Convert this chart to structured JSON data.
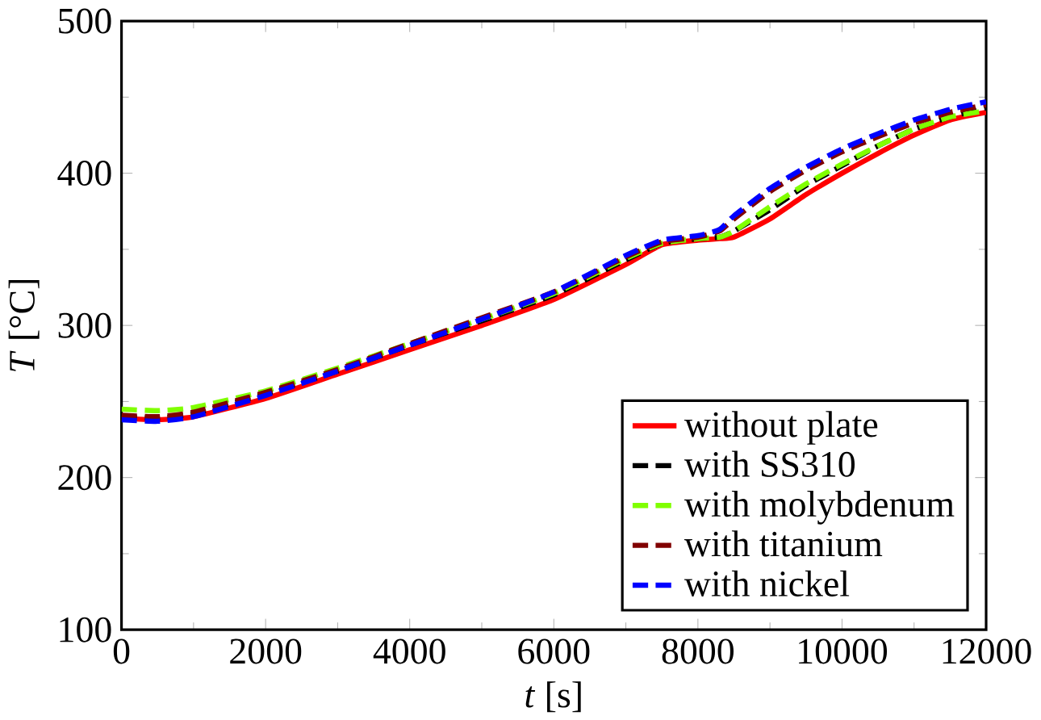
{
  "chart_data": {
    "type": "line",
    "xlabel": "*t* [s]",
    "ylabel": "*T* [°C]",
    "xlim": [
      0,
      12000
    ],
    "ylim": [
      100,
      500
    ],
    "xticks": [
      0,
      2000,
      4000,
      6000,
      8000,
      10000,
      12000
    ],
    "yticks": [
      100,
      200,
      300,
      400,
      500
    ],
    "legend": "bottom right",
    "grid": false,
    "x": [
      0,
      500,
      1000,
      2000,
      3000,
      4000,
      5000,
      6000,
      7000,
      7500,
      8000,
      8300,
      8500,
      9000,
      9500,
      10000,
      10500,
      11000,
      11500,
      12000
    ],
    "series": [
      {
        "name": "without plate",
        "color": "#ff0000",
        "line_style": "solid",
        "values": [
          239,
          238,
          240,
          252,
          268,
          284,
          300,
          317,
          340,
          353,
          356,
          357,
          358,
          370,
          386,
          400,
          413,
          425,
          435,
          440
        ]
      },
      {
        "name": "with SS310",
        "color": "#000000",
        "line_style": "dashed",
        "values": [
          240,
          239,
          242,
          255,
          270,
          287,
          303,
          320,
          343,
          354,
          357,
          358,
          362,
          376,
          392,
          405,
          418,
          429,
          437,
          443
        ]
      },
      {
        "name": "with molybdenum",
        "color": "#80ff00",
        "line_style": "dashed",
        "values": [
          245,
          244,
          246,
          257,
          272,
          288,
          304,
          321,
          344,
          354,
          357,
          358,
          362,
          378,
          393,
          406,
          418,
          429,
          437,
          441
        ]
      },
      {
        "name": "with titanium",
        "color": "#800000",
        "line_style": "dashed",
        "values": [
          241,
          240,
          243,
          256,
          271,
          288,
          305,
          322,
          345,
          355,
          358,
          362,
          370,
          388,
          402,
          414,
          424,
          433,
          440,
          445
        ]
      },
      {
        "name": "with nickel",
        "color": "#0000ff",
        "line_style": "dashed",
        "values": [
          238,
          237,
          240,
          254,
          270,
          287,
          304,
          322,
          346,
          356,
          359,
          363,
          372,
          390,
          404,
          416,
          426,
          435,
          442,
          447
        ]
      }
    ]
  }
}
